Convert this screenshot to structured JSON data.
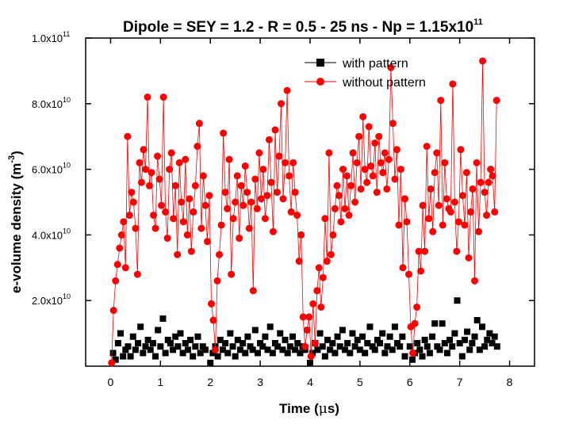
{
  "chart_data": {
    "type": "scatter",
    "title": {
      "main": "Dipole = SEY = 1.2 - R = 0.5 - 25 ns - Np = 1.15x10",
      "sup": "11"
    },
    "xlabel": {
      "main": "Time (",
      "mu": "μ",
      "unit": "s)"
    },
    "ylabel": {
      "main": "e-volume density (m",
      "sup": "-3",
      "close": ")"
    },
    "xlim": [
      -0.5,
      8.5
    ],
    "ylim": [
      0,
      100000000000.0
    ],
    "x_ticks": [
      {
        "value": 0,
        "label": "0"
      },
      {
        "value": 1,
        "label": "1"
      },
      {
        "value": 2,
        "label": "2"
      },
      {
        "value": 3,
        "label": "3"
      },
      {
        "value": 4,
        "label": "4"
      },
      {
        "value": 5,
        "label": "5"
      },
      {
        "value": 6,
        "label": "6"
      },
      {
        "value": 7,
        "label": "7"
      },
      {
        "value": 8,
        "label": "8"
      }
    ],
    "y_ticks": [
      {
        "value": 20000000000.0,
        "mantissa": "2.0x10",
        "exp": "10"
      },
      {
        "value": 40000000000.0,
        "mantissa": "4.0x10",
        "exp": "10"
      },
      {
        "value": 60000000000.0,
        "mantissa": "6.0x10",
        "exp": "10"
      },
      {
        "value": 80000000000.0,
        "mantissa": "8.0x10",
        "exp": "10"
      },
      {
        "value": 100000000000.0,
        "mantissa": "1.0x10",
        "exp": "11"
      }
    ],
    "legend_position": "top-right",
    "series": [
      {
        "name": "with pattern",
        "color": "#000000",
        "marker": "square",
        "connected": false,
        "x": [
          0.05,
          0.1,
          0.15,
          0.2,
          0.25,
          0.3,
          0.35,
          0.4,
          0.45,
          0.5,
          0.55,
          0.6,
          0.65,
          0.7,
          0.75,
          0.8,
          0.85,
          0.9,
          0.95,
          1.0,
          1.05,
          1.1,
          1.15,
          1.2,
          1.25,
          1.3,
          1.35,
          1.4,
          1.45,
          1.5,
          1.55,
          1.6,
          1.65,
          1.7,
          1.75,
          1.8,
          1.85,
          1.9,
          2.0,
          2.05,
          2.1,
          2.15,
          2.2,
          2.25,
          2.3,
          2.35,
          2.4,
          2.45,
          2.5,
          2.55,
          2.6,
          2.65,
          2.7,
          2.75,
          2.8,
          2.85,
          2.9,
          2.95,
          3.0,
          3.05,
          3.1,
          3.15,
          3.2,
          3.25,
          3.3,
          3.35,
          3.4,
          3.45,
          3.5,
          3.55,
          3.6,
          3.65,
          3.7,
          3.75,
          3.8,
          3.85,
          3.9,
          4.0,
          4.05,
          4.1,
          4.15,
          4.2,
          4.25,
          4.3,
          4.35,
          4.4,
          4.45,
          4.5,
          4.55,
          4.6,
          4.65,
          4.7,
          4.75,
          4.8,
          4.85,
          4.9,
          4.95,
          5.0,
          5.05,
          5.1,
          5.15,
          5.2,
          5.25,
          5.3,
          5.35,
          5.4,
          5.45,
          5.5,
          5.55,
          5.6,
          5.65,
          5.7,
          5.75,
          5.8,
          5.85,
          5.9,
          6.0,
          6.05,
          6.1,
          6.15,
          6.2,
          6.25,
          6.3,
          6.35,
          6.4,
          6.45,
          6.5,
          6.55,
          6.6,
          6.65,
          6.7,
          6.75,
          6.8,
          6.85,
          6.9,
          6.95,
          7.0,
          7.05,
          7.1,
          7.15,
          7.2,
          7.25,
          7.3,
          7.35,
          7.4,
          7.45,
          7.5,
          7.55,
          7.6,
          7.65,
          7.7,
          7.75
        ],
        "y": [
          4000000000.0,
          2000000000.0,
          7000000000.0,
          10000000000.0,
          3000000000.0,
          5000000000.0,
          6000000000.0,
          3000000000.0,
          9000000000.0,
          5000000000.0,
          7000000000.0,
          12000000000.0,
          4000000000.0,
          6000000000.0,
          8000000000.0,
          5000000000.0,
          7000000000.0,
          3000000000.0,
          11000000000.0,
          6000000000.0,
          14500000000.0,
          4000000000.0,
          8000000000.0,
          7000000000.0,
          5000000000.0,
          9000000000.0,
          6000000000.0,
          10000000000.0,
          4000000000.0,
          7000000000.0,
          5000000000.0,
          8000000000.0,
          3000000000.0,
          6000000000.0,
          9000000000.0,
          4000000000.0,
          6000000000.0,
          5000000000.0,
          1000000000.0,
          4000000000.0,
          6000000000.0,
          3000000000.0,
          8000000000.0,
          5000000000.0,
          7000000000.0,
          4000000000.0,
          10000000000.0,
          6000000000.0,
          3000000000.0,
          8000000000.0,
          5000000000.0,
          7000000000.0,
          4000000000.0,
          9000000000.0,
          6000000000.0,
          5000000000.0,
          11000000000.0,
          4000000000.0,
          7000000000.0,
          6000000000.0,
          9000000000.0,
          5000000000.0,
          12000000000.0,
          4000000000.0,
          7000000000.0,
          6000000000.0,
          10000000000.0,
          5000000000.0,
          8000000000.0,
          4000000000.0,
          6000000000.0,
          9000000000.0,
          5000000000.0,
          7000000000.0,
          4000000000.0,
          6000000000.0,
          5000000000.0,
          1000000000.0,
          4000000000.0,
          7000000000.0,
          5000000000.0,
          10000000000.0,
          6000000000.0,
          3000000000.0,
          8000000000.0,
          5000000000.0,
          7000000000.0,
          4000000000.0,
          9000000000.0,
          6000000000.0,
          11000000000.0,
          5000000000.0,
          7000000000.0,
          4000000000.0,
          10000000000.0,
          6000000000.0,
          8000000000.0,
          5000000000.0,
          9000000000.0,
          4000000000.0,
          7000000000.0,
          12000000000.0,
          6000000000.0,
          5000000000.0,
          8000000000.0,
          7000000000.0,
          10000000000.0,
          4000000000.0,
          6000000000.0,
          9000000000.0,
          5000000000.0,
          12000000000.0,
          7000000000.0,
          6000000000.0,
          9000000000.0,
          3000000000.0,
          6000000000.0,
          2000000000.0,
          4000000000.0,
          7000000000.0,
          5000000000.0,
          3000000000.0,
          8000000000.0,
          6000000000.0,
          4000000000.0,
          9000000000.0,
          13000000000.0,
          6000000000.0,
          5000000000.0,
          13000000000.0,
          7000000000.0,
          4000000000.0,
          8000000000.0,
          6000000000.0,
          10000000000.0,
          20000000000.0,
          7000000000.0,
          3000000000.0,
          8000000000.0,
          10500000000.0,
          5000000000.0,
          7000000000.0,
          9000000000.0,
          14000000000.0,
          5000000000.0,
          12000000000.0,
          6000000000.0,
          8000000000.0,
          10000000000.0,
          7000000000.0,
          9000000000.0,
          6000000000.0
        ]
      },
      {
        "name": "without pattern",
        "color": "#ff0000",
        "marker": "circle",
        "connected": true,
        "x": [
          0.02,
          0.06,
          0.1,
          0.14,
          0.18,
          0.22,
          0.26,
          0.3,
          0.34,
          0.38,
          0.42,
          0.46,
          0.5,
          0.54,
          0.58,
          0.62,
          0.66,
          0.7,
          0.74,
          0.78,
          0.82,
          0.86,
          0.9,
          0.94,
          0.98,
          1.02,
          1.06,
          1.1,
          1.14,
          1.18,
          1.22,
          1.26,
          1.3,
          1.34,
          1.38,
          1.42,
          1.46,
          1.5,
          1.54,
          1.58,
          1.62,
          1.66,
          1.7,
          1.74,
          1.78,
          1.82,
          1.86,
          1.9,
          1.94,
          1.98,
          2.02,
          2.06,
          2.1,
          2.14,
          2.18,
          2.22,
          2.26,
          2.3,
          2.34,
          2.38,
          2.42,
          2.46,
          2.5,
          2.54,
          2.58,
          2.62,
          2.66,
          2.7,
          2.74,
          2.78,
          2.82,
          2.86,
          2.9,
          2.94,
          2.98,
          3.02,
          3.06,
          3.1,
          3.14,
          3.18,
          3.22,
          3.26,
          3.3,
          3.34,
          3.38,
          3.42,
          3.46,
          3.5,
          3.54,
          3.58,
          3.62,
          3.66,
          3.7,
          3.74,
          3.78,
          3.82,
          3.86,
          3.9,
          3.94,
          3.98,
          4.02,
          4.06,
          4.1,
          4.14,
          4.18,
          4.22,
          4.26,
          4.3,
          4.34,
          4.38,
          4.42,
          4.46,
          4.5,
          4.54,
          4.58,
          4.62,
          4.66,
          4.7,
          4.74,
          4.78,
          4.82,
          4.86,
          4.9,
          4.94,
          4.98,
          5.02,
          5.06,
          5.1,
          5.14,
          5.18,
          5.22,
          5.26,
          5.3,
          5.34,
          5.38,
          5.42,
          5.46,
          5.5,
          5.54,
          5.58,
          5.62,
          5.66,
          5.7,
          5.74,
          5.78,
          5.82,
          5.86,
          5.9,
          5.94,
          5.98,
          6.02,
          6.06,
          6.1,
          6.14,
          6.18,
          6.22,
          6.26,
          6.3,
          6.34,
          6.38,
          6.42,
          6.46,
          6.5,
          6.54,
          6.58,
          6.62,
          6.66,
          6.7,
          6.74,
          6.78,
          6.82,
          6.86,
          6.9,
          6.94,
          6.98,
          7.02,
          7.06,
          7.1,
          7.14,
          7.18,
          7.22,
          7.26,
          7.3,
          7.34,
          7.38,
          7.42,
          7.46,
          7.5,
          7.54,
          7.58,
          7.62,
          7.66,
          7.7,
          7.74
        ],
        "y": [
          1000000000.0,
          17000000000.0,
          26000000000.0,
          31000000000.0,
          36000000000.0,
          40000000000.0,
          44000000000.0,
          30000000000.0,
          70000000000.0,
          46000000000.0,
          53000000000.0,
          50000000000.0,
          42000000000.0,
          28000000000.0,
          62000000000.0,
          56000000000.0,
          66000000000.0,
          60000000000.0,
          82000000000.0,
          55000000000.0,
          59000000000.0,
          46000000000.0,
          42000000000.0,
          64000000000.0,
          57000000000.0,
          49000000000.0,
          82000000000.0,
          47000000000.0,
          39000000000.0,
          60000000000.0,
          65000000000.0,
          45000000000.0,
          55000000000.0,
          34000000000.0,
          62000000000.0,
          50000000000.0,
          44000000000.0,
          63000000000.0,
          40000000000.0,
          51000000000.0,
          35000000000.0,
          47000000000.0,
          55000000000.0,
          67000000000.0,
          74000000000.0,
          42000000000.0,
          58000000000.0,
          49000000000.0,
          38000000000.0,
          52000000000.0,
          19000000000.0,
          14000000000.0,
          5000000000.0,
          26000000000.0,
          34000000000.0,
          43000000000.0,
          71000000000.0,
          53000000000.0,
          48000000000.0,
          63000000000.0,
          28000000000.0,
          45000000000.0,
          50000000000.0,
          58000000000.0,
          39000000000.0,
          55000000000.0,
          49000000000.0,
          61000000000.0,
          53000000000.0,
          42000000000.0,
          50000000000.0,
          23000000000.0,
          57000000000.0,
          48000000000.0,
          65000000000.0,
          51000000000.0,
          60000000000.0,
          45000000000.0,
          52000000000.0,
          69000000000.0,
          56000000000.0,
          41000000000.0,
          72000000000.0,
          53000000000.0,
          64000000000.0,
          80000000000.0,
          51000000000.0,
          62000000000.0,
          84000000000.0,
          58000000000.0,
          47000000000.0,
          62000000000.0,
          53000000000.0,
          46000000000.0,
          32000000000.0,
          40000000000.0,
          15000000000.0,
          6000000000.0,
          11000000000.0,
          15000000000.0,
          3000000000.0,
          19000000000.0,
          7000000000.0,
          23000000000.0,
          30000000000.0,
          18000000000.0,
          27000000000.0,
          45000000000.0,
          32000000000.0,
          65000000000.0,
          34000000000.0,
          40000000000.0,
          48000000000.0,
          55000000000.0,
          52000000000.0,
          44000000000.0,
          60000000000.0,
          48000000000.0,
          58000000000.0,
          46000000000.0,
          55000000000.0,
          65000000000.0,
          50000000000.0,
          62000000000.0,
          70000000000.0,
          54000000000.0,
          76000000000.0,
          60000000000.0,
          56000000000.0,
          73000000000.0,
          61000000000.0,
          58000000000.0,
          68000000000.0,
          53000000000.0,
          70000000000.0,
          62000000000.0,
          59000000000.0,
          65000000000.0,
          54000000000.0,
          63000000000.0,
          91000000000.0,
          74000000000.0,
          57000000000.0,
          66000000000.0,
          43000000000.0,
          60000000000.0,
          30000000000.0,
          51000000000.0,
          44000000000.0,
          28000000000.0,
          12000000000.0,
          4000000000.0,
          13000000000.0,
          18000000000.0,
          35000000000.0,
          29000000000.0,
          49000000000.0,
          35000000000.0,
          67000000000.0,
          45000000000.0,
          54000000000.0,
          41000000000.0,
          59000000000.0,
          65000000000.0,
          49000000000.0,
          81000000000.0,
          43000000000.0,
          62000000000.0,
          51000000000.0,
          48000000000.0,
          47000000000.0,
          86000000000.0,
          50000000000.0,
          35000000000.0,
          44000000000.0,
          66000000000.0,
          52000000000.0,
          43000000000.0,
          59000000000.0,
          33000000000.0,
          47000000000.0,
          54000000000.0,
          26000000000.0,
          62000000000.0,
          41000000000.0,
          56000000000.0,
          93000000000.0,
          53000000000.0,
          46000000000.0,
          56000000000.0,
          60000000000.0,
          58000000000.0,
          47000000000.0,
          81000000000.0
        ]
      }
    ]
  }
}
